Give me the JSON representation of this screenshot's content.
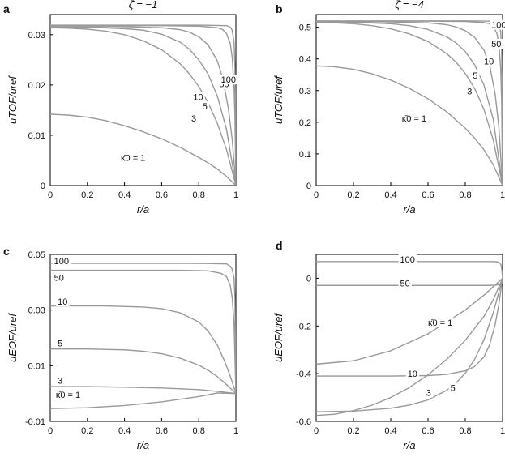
{
  "chart_data": [
    {
      "panel": "a",
      "type": "line",
      "title": "ζ̄ = −1",
      "xlabel": "r/a",
      "ylabel": "uTOF/uref",
      "xlim": [
        0,
        1
      ],
      "ylim": [
        0,
        0.034
      ],
      "xticks": [
        0,
        0.2,
        0.4,
        0.6,
        0.8,
        1
      ],
      "xtick_labels": [
        "0",
        "0.2",
        "0.4",
        "0.6",
        "0.8",
        "1"
      ],
      "yticks": [
        0,
        0.01,
        0.02,
        0.03
      ],
      "ytick_labels": [
        "0",
        "0.01",
        "0.02",
        "0.03"
      ],
      "grid": false,
      "color": "#999999",
      "series": [
        {
          "name": "κ̄0 = 1",
          "x": [
            0,
            0.1,
            0.2,
            0.3,
            0.4,
            0.5,
            0.6,
            0.7,
            0.8,
            0.85,
            0.9,
            0.95,
            1.0
          ],
          "y": [
            0.0142,
            0.014,
            0.0136,
            0.0129,
            0.0119,
            0.0107,
            0.0093,
            0.0076,
            0.0056,
            0.0045,
            0.0033,
            0.0018,
            0.0
          ]
        },
        {
          "name": "3",
          "x": [
            0,
            0.1,
            0.2,
            0.3,
            0.4,
            0.5,
            0.6,
            0.7,
            0.75,
            0.8,
            0.85,
            0.9,
            0.95,
            1.0
          ],
          "y": [
            0.0314,
            0.0313,
            0.0311,
            0.0307,
            0.03,
            0.0288,
            0.027,
            0.0242,
            0.0222,
            0.0197,
            0.0165,
            0.0124,
            0.0071,
            0.0
          ]
        },
        {
          "name": "5",
          "x": [
            0,
            0.2,
            0.4,
            0.5,
            0.6,
            0.7,
            0.75,
            0.8,
            0.85,
            0.9,
            0.95,
            1.0
          ],
          "y": [
            0.0315,
            0.0315,
            0.0312,
            0.0309,
            0.0301,
            0.0285,
            0.0271,
            0.025,
            0.0222,
            0.0178,
            0.0111,
            0.0
          ]
        },
        {
          "name": "10",
          "x": [
            0,
            0.4,
            0.6,
            0.7,
            0.75,
            0.8,
            0.85,
            0.9,
            0.93,
            0.96,
            0.98,
            1.0
          ],
          "y": [
            0.0316,
            0.0316,
            0.0314,
            0.031,
            0.0305,
            0.0296,
            0.028,
            0.0248,
            0.0212,
            0.0152,
            0.0092,
            0.0
          ]
        },
        {
          "name": "50",
          "x": [
            0,
            0.6,
            0.8,
            0.9,
            0.93,
            0.95,
            0.97,
            0.98,
            0.99,
            0.995,
            1.0
          ],
          "y": [
            0.0318,
            0.0318,
            0.0317,
            0.0314,
            0.031,
            0.0302,
            0.0282,
            0.0255,
            0.0195,
            0.0135,
            0.0
          ]
        },
        {
          "name": "100",
          "x": [
            0,
            0.8,
            0.95,
            0.97,
            0.98,
            0.99,
            0.995,
            0.998,
            1.0
          ],
          "y": [
            0.0319,
            0.0319,
            0.0318,
            0.0315,
            0.0309,
            0.0285,
            0.0235,
            0.015,
            0.0
          ]
        }
      ],
      "labels": [
        {
          "text": "κ̄0 = 1",
          "x": 0.38,
          "y": 0.0051
        },
        {
          "text": "3",
          "x": 0.76,
          "y": 0.0129
        },
        {
          "text": "5",
          "x": 0.82,
          "y": 0.0153
        },
        {
          "text": "10",
          "x": 0.77,
          "y": 0.0172
        },
        {
          "text": "50",
          "x": 0.91,
          "y": 0.0197
        },
        {
          "text": "100",
          "x": 0.92,
          "y": 0.0206
        }
      ]
    },
    {
      "panel": "b",
      "type": "line",
      "title": "ζ̄ = −4",
      "xlabel": "r/a",
      "ylabel": "uTOF/uref",
      "xlim": [
        0,
        1
      ],
      "ylim": [
        0,
        0.54
      ],
      "xticks": [
        0,
        0.2,
        0.4,
        0.6,
        0.8,
        1
      ],
      "xtick_labels": [
        "0",
        "0.2",
        "0.4",
        "0.6",
        "0.8",
        "1"
      ],
      "yticks": [
        0,
        0.1,
        0.2,
        0.3,
        0.4,
        0.5
      ],
      "ytick_labels": [
        "0",
        "0.1",
        "0.2",
        "0.3",
        "0.4",
        "0.5"
      ],
      "grid": false,
      "color": "#999999",
      "series": [
        {
          "name": "κ̄0 = 1",
          "x": [
            0,
            0.1,
            0.2,
            0.3,
            0.4,
            0.5,
            0.6,
            0.7,
            0.8,
            0.85,
            0.9,
            0.95,
            1.0
          ],
          "y": [
            0.378,
            0.375,
            0.367,
            0.353,
            0.333,
            0.307,
            0.274,
            0.233,
            0.181,
            0.15,
            0.113,
            0.066,
            0.0
          ]
        },
        {
          "name": "3",
          "x": [
            0,
            0.1,
            0.2,
            0.3,
            0.4,
            0.5,
            0.6,
            0.7,
            0.75,
            0.8,
            0.85,
            0.9,
            0.95,
            1.0
          ],
          "y": [
            0.515,
            0.514,
            0.511,
            0.505,
            0.495,
            0.479,
            0.455,
            0.417,
            0.39,
            0.354,
            0.307,
            0.241,
            0.144,
            0.0
          ]
        },
        {
          "name": "5",
          "x": [
            0,
            0.2,
            0.4,
            0.5,
            0.6,
            0.7,
            0.75,
            0.8,
            0.85,
            0.9,
            0.95,
            1.0
          ],
          "y": [
            0.517,
            0.516,
            0.511,
            0.505,
            0.493,
            0.47,
            0.451,
            0.423,
            0.382,
            0.318,
            0.209,
            0.0
          ]
        },
        {
          "name": "10",
          "x": [
            0,
            0.4,
            0.6,
            0.7,
            0.75,
            0.8,
            0.85,
            0.9,
            0.93,
            0.96,
            0.98,
            1.0
          ],
          "y": [
            0.518,
            0.517,
            0.514,
            0.508,
            0.501,
            0.489,
            0.468,
            0.428,
            0.382,
            0.29,
            0.186,
            0.0
          ]
        },
        {
          "name": "50",
          "x": [
            0,
            0.6,
            0.8,
            0.9,
            0.93,
            0.95,
            0.97,
            0.98,
            0.99,
            0.995,
            1.0
          ],
          "y": [
            0.519,
            0.519,
            0.518,
            0.515,
            0.511,
            0.503,
            0.48,
            0.447,
            0.37,
            0.265,
            0.0
          ]
        },
        {
          "name": "100",
          "x": [
            0,
            0.8,
            0.95,
            0.97,
            0.98,
            0.99,
            0.995,
            0.998,
            1.0
          ],
          "y": [
            0.52,
            0.52,
            0.519,
            0.516,
            0.51,
            0.485,
            0.425,
            0.3,
            0.0
          ]
        }
      ],
      "labels": [
        {
          "text": "κ̄0 = 1",
          "x": 0.46,
          "y": 0.205
        },
        {
          "text": "3",
          "x": 0.81,
          "y": 0.29
        },
        {
          "text": "5",
          "x": 0.84,
          "y": 0.34
        },
        {
          "text": "10",
          "x": 0.9,
          "y": 0.385
        },
        {
          "text": "50",
          "x": 0.94,
          "y": 0.44
        },
        {
          "text": "100",
          "x": 0.94,
          "y": 0.5
        }
      ]
    },
    {
      "panel": "c",
      "type": "line",
      "title": "",
      "xlabel": "r/a",
      "ylabel": "uEOF/uref",
      "xlim": [
        0,
        1
      ],
      "ylim": [
        -0.01,
        0.05
      ],
      "xticks": [
        0,
        0.2,
        0.4,
        0.6,
        0.8,
        1
      ],
      "xtick_labels": [
        "0",
        "0.2",
        "0.4",
        "0.6",
        "0.8",
        "1"
      ],
      "yticks": [
        -0.01,
        0.01,
        0.03,
        0.05
      ],
      "ytick_labels": [
        "-0.01",
        "0.01",
        "0.03",
        "0.05"
      ],
      "grid": false,
      "color": "#999999",
      "series": [
        {
          "name": "κ̄0 = 1",
          "x": [
            0,
            0.2,
            0.4,
            0.6,
            0.8,
            0.9,
            1.0
          ],
          "y": [
            -0.0054,
            -0.0051,
            -0.0043,
            -0.003,
            -0.0011,
            0.0002,
            0.0
          ]
        },
        {
          "name": "3",
          "x": [
            0,
            0.2,
            0.4,
            0.6,
            0.8,
            0.9,
            1.0
          ],
          "y": [
            0.0025,
            0.0025,
            0.0023,
            0.002,
            0.0014,
            0.0008,
            0.0
          ]
        },
        {
          "name": "5",
          "x": [
            0,
            0.2,
            0.4,
            0.5,
            0.6,
            0.7,
            0.8,
            0.85,
            0.9,
            0.95,
            1.0
          ],
          "y": [
            0.016,
            0.016,
            0.0157,
            0.0152,
            0.0143,
            0.0127,
            0.0102,
            0.0084,
            0.0061,
            0.0032,
            0.0
          ]
        },
        {
          "name": "10",
          "x": [
            0,
            0.3,
            0.5,
            0.6,
            0.7,
            0.8,
            0.85,
            0.9,
            0.94,
            0.97,
            1.0
          ],
          "y": [
            0.0315,
            0.0315,
            0.0311,
            0.0305,
            0.029,
            0.0257,
            0.0225,
            0.0174,
            0.0115,
            0.0062,
            0.0
          ]
        },
        {
          "name": "50",
          "x": [
            0,
            0.7,
            0.85,
            0.92,
            0.95,
            0.97,
            0.98,
            0.99,
            1.0
          ],
          "y": [
            0.0443,
            0.0443,
            0.0441,
            0.0432,
            0.042,
            0.0388,
            0.0345,
            0.0255,
            0.0
          ]
        },
        {
          "name": "100",
          "x": [
            0,
            0.8,
            0.95,
            0.97,
            0.98,
            0.99,
            0.995,
            1.0
          ],
          "y": [
            0.0468,
            0.0468,
            0.0466,
            0.0457,
            0.0447,
            0.0415,
            0.0345,
            0.0
          ]
        }
      ],
      "labels": [
        {
          "text": "100",
          "x": 0.02,
          "y": 0.0468
        },
        {
          "text": "50",
          "x": 0.02,
          "y": 0.0408
        },
        {
          "text": "10",
          "x": 0.04,
          "y": 0.0322
        },
        {
          "text": "5",
          "x": 0.04,
          "y": 0.0172
        },
        {
          "text": "3",
          "x": 0.04,
          "y": 0.0039
        },
        {
          "text": "κ̄0 = 1",
          "x": 0.03,
          "y": -0.0013
        }
      ]
    },
    {
      "panel": "d",
      "type": "line",
      "title": "",
      "xlabel": "r/a",
      "ylabel": "uEOF/uref",
      "xlim": [
        0,
        1
      ],
      "ylim": [
        -0.6,
        0.1
      ],
      "xticks": [
        0,
        0.2,
        0.4,
        0.6,
        0.8,
        1
      ],
      "xtick_labels": [
        "0",
        "0.2",
        "0.4",
        "0.6",
        "0.8",
        "1"
      ],
      "yticks": [
        -0.6,
        -0.4,
        -0.2,
        0
      ],
      "ytick_labels": [
        "-0.6",
        "-0.4",
        "-0.2",
        "0"
      ],
      "grid": false,
      "color": "#999999",
      "series": [
        {
          "name": "κ̄0 = 1",
          "x": [
            0,
            0.2,
            0.4,
            0.6,
            0.8,
            0.9,
            1.0
          ],
          "y": [
            -0.36,
            -0.346,
            -0.304,
            -0.233,
            -0.133,
            -0.071,
            0.0
          ]
        },
        {
          "name": "3",
          "x": [
            0,
            0.1,
            0.2,
            0.3,
            0.4,
            0.5,
            0.6,
            0.7,
            0.8,
            0.9,
            0.95,
            1.0
          ],
          "y": [
            -0.575,
            -0.57,
            -0.555,
            -0.532,
            -0.5,
            -0.458,
            -0.405,
            -0.34,
            -0.26,
            -0.16,
            -0.09,
            0.0
          ]
        },
        {
          "name": "5",
          "x": [
            0,
            0.2,
            0.4,
            0.5,
            0.6,
            0.7,
            0.75,
            0.8,
            0.85,
            0.9,
            0.95,
            1.0
          ],
          "y": [
            -0.56,
            -0.557,
            -0.545,
            -0.532,
            -0.51,
            -0.47,
            -0.44,
            -0.398,
            -0.34,
            -0.258,
            -0.145,
            0.0
          ]
        },
        {
          "name": "10",
          "x": [
            0,
            0.4,
            0.6,
            0.7,
            0.8,
            0.85,
            0.9,
            0.93,
            0.96,
            0.98,
            1.0
          ],
          "y": [
            -0.41,
            -0.41,
            -0.408,
            -0.403,
            -0.388,
            -0.37,
            -0.33,
            -0.28,
            -0.195,
            -0.11,
            0.0
          ]
        },
        {
          "name": "50",
          "x": [
            0,
            0.8,
            0.92,
            0.96,
            0.98,
            0.99,
            1.0
          ],
          "y": [
            -0.03,
            -0.03,
            -0.03,
            -0.029,
            -0.027,
            -0.022,
            0.0
          ]
        },
        {
          "name": "100",
          "x": [
            0,
            0.8,
            0.95,
            0.97,
            0.98,
            0.99,
            0.995,
            1.0
          ],
          "y": [
            0.07,
            0.07,
            0.07,
            0.069,
            0.067,
            0.059,
            0.045,
            0.0
          ]
        }
      ],
      "labels": [
        {
          "text": "100",
          "x": 0.45,
          "y": 0.07
        },
        {
          "text": "50",
          "x": 0.45,
          "y": -0.03
        },
        {
          "text": "10",
          "x": 0.49,
          "y": -0.41
        },
        {
          "text": "κ̄0 = 1",
          "x": 0.6,
          "y": -0.195
        },
        {
          "text": "3",
          "x": 0.59,
          "y": -0.49
        },
        {
          "text": "5",
          "x": 0.72,
          "y": -0.47
        }
      ]
    }
  ]
}
